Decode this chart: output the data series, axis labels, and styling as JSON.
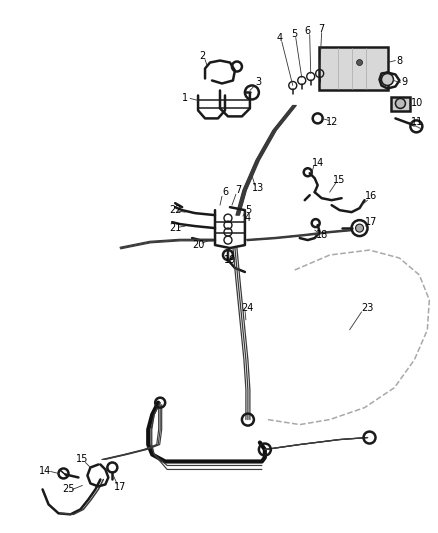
{
  "bg_color": "#ffffff",
  "line_color": "#1a1a1a",
  "thin_line_color": "#3a3a3a",
  "dashed_line_color": "#999999",
  "label_color": "#000000",
  "label_fontsize": 7.0,
  "fig_width": 4.38,
  "fig_height": 5.33
}
